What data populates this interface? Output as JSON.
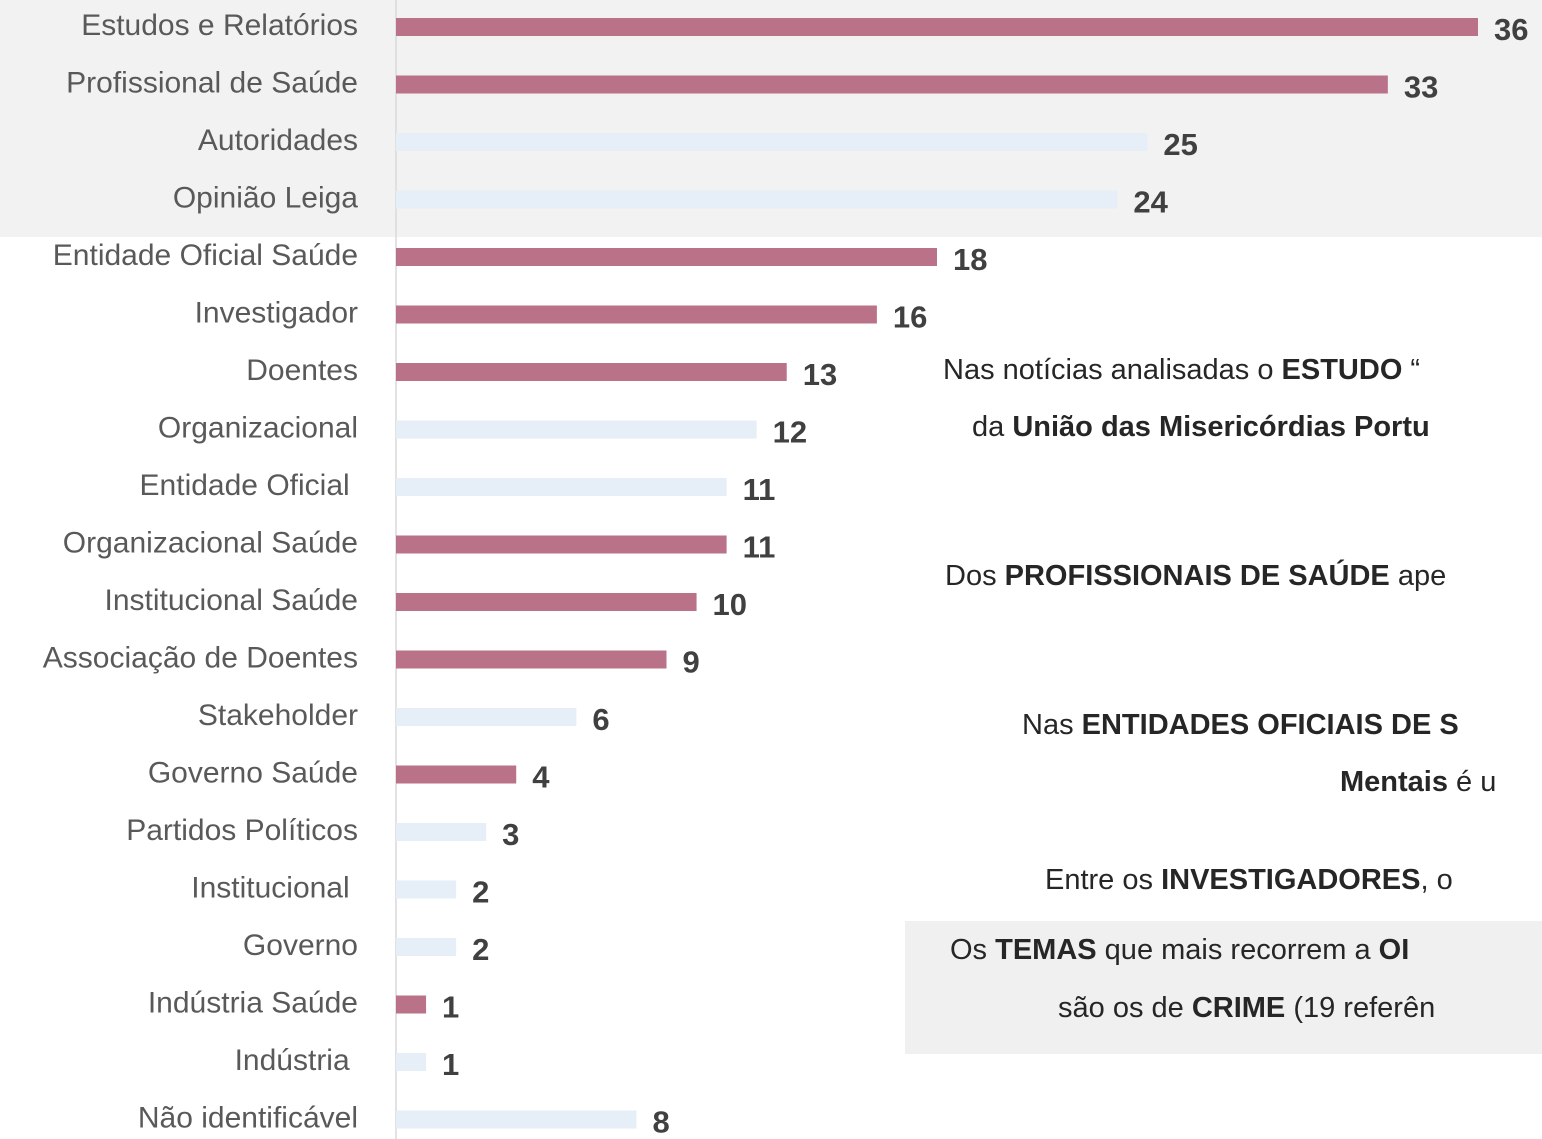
{
  "chart_data": {
    "type": "barh",
    "categories": [
      "Estudos e Relatórios",
      "Profissional de Saúde",
      "Autoridades",
      "Opinião Leiga",
      "Entidade Oficial Saúde",
      "Investigador",
      "Doentes",
      "Organizacional",
      "Entidade Oficial ",
      "Organizacional Saúde",
      "Institucional Saúde",
      "Associação de Doentes",
      "Stakeholder",
      "Governo Saúde",
      "Partidos Políticos",
      "Institucional ",
      "Governo",
      "Indústria Saúde",
      "Indústria ",
      "Não identificável"
    ],
    "values": [
      36,
      33,
      25,
      24,
      18,
      16,
      13,
      12,
      11,
      11,
      10,
      9,
      6,
      4,
      3,
      2,
      2,
      1,
      1,
      8
    ],
    "colors": [
      "#b97287",
      "#b97287",
      "#e6eef8",
      "#e6eef8",
      "#b97287",
      "#b97287",
      "#b97287",
      "#e6eef8",
      "#e6eef8",
      "#b97287",
      "#b97287",
      "#b97287",
      "#e6eef8",
      "#b97287",
      "#e6eef8",
      "#e6eef8",
      "#e6eef8",
      "#b97287",
      "#e6eef8",
      "#e6eef8"
    ],
    "xlim": [
      0,
      36
    ],
    "annotations": [
      [
        {
          "text": "Nas notícias analisadas o ",
          "bold": false
        },
        {
          "text": "ESTUDO",
          "bold": true
        },
        {
          "text": " “",
          "bold": false
        }
      ],
      [
        {
          "text": "da ",
          "bold": false
        },
        {
          "text": "União das Misericórdias Portu",
          "bold": true
        }
      ],
      [
        {
          "text": "Dos ",
          "bold": false
        },
        {
          "text": "PROFISSIONAIS DE SAÚDE",
          "bold": true
        },
        {
          "text": " ape",
          "bold": false
        }
      ],
      [
        {
          "text": "Nas ",
          "bold": false
        },
        {
          "text": "ENTIDADES OFICIAIS DE S",
          "bold": true
        }
      ],
      [
        {
          "text": "Mentais",
          "bold": true
        },
        {
          "text": " é u",
          "bold": false
        }
      ],
      [
        {
          "text": "Entre os ",
          "bold": false
        },
        {
          "text": "INVESTIGADORES",
          "bold": true
        },
        {
          "text": ", o",
          "bold": false
        }
      ],
      [
        {
          "text": "Os ",
          "bold": false
        },
        {
          "text": "TEMAS",
          "bold": true
        },
        {
          "text": " que mais recorrem a ",
          "bold": false
        },
        {
          "text": "OI",
          "bold": true
        }
      ],
      [
        {
          "text": "são os de ",
          "bold": false
        },
        {
          "text": "CRIME",
          "bold": true
        },
        {
          "text": " (19 referên",
          "bold": false
        }
      ]
    ]
  }
}
